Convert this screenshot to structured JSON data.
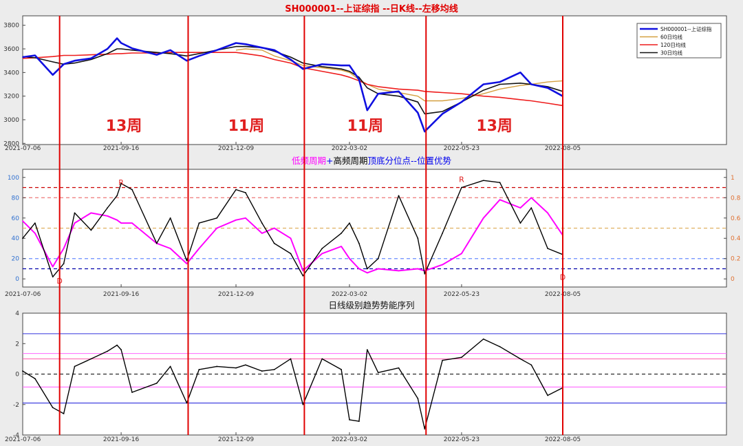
{
  "chart_data": [
    {
      "type": "line",
      "title": "SH000001--上证综指 --日K线--左移均线",
      "x_ticks": [
        "2021-07-06",
        "2021-09-16",
        "2021-12-09",
        "2022-03-02",
        "2022-05-23",
        "2022-08-05"
      ],
      "y_ticks": [
        2800,
        3000,
        3200,
        3400,
        3600,
        3800
      ],
      "ylim": [
        2790,
        3880
      ],
      "legend": {
        "position": "top-right",
        "entries": [
          "SH000001--上证综指",
          "60日均线",
          "120日均线",
          "30日均线"
        ]
      },
      "colors": {
        "price": "#1010e0",
        "ma60": "#d4a040",
        "ma120": "#ee1c1c",
        "ma30": "#111111"
      },
      "x": [
        "2021-07-06",
        "2021-07-15",
        "2021-07-28",
        "2021-08-05",
        "2021-08-13",
        "2021-08-25",
        "2021-09-06",
        "2021-09-13",
        "2021-09-16",
        "2021-09-24",
        "2021-10-12",
        "2021-10-22",
        "2021-11-03",
        "2021-11-12",
        "2021-11-25",
        "2021-12-09",
        "2021-12-16",
        "2021-12-28",
        "2022-01-06",
        "2022-01-18",
        "2022-01-27",
        "2022-02-10",
        "2022-02-24",
        "2022-03-02",
        "2022-03-09",
        "2022-03-15",
        "2022-03-23",
        "2022-04-07",
        "2022-04-21",
        "2022-04-26",
        "2022-05-09",
        "2022-05-23",
        "2022-06-08",
        "2022-06-20",
        "2022-07-05",
        "2022-07-13",
        "2022-07-25",
        "2022-08-05"
      ],
      "series": [
        {
          "name": "SH000001--上证综指",
          "key": "price",
          "width": 2.6,
          "values": [
            3530,
            3545,
            3380,
            3470,
            3500,
            3520,
            3600,
            3690,
            3650,
            3605,
            3550,
            3590,
            3500,
            3540,
            3590,
            3650,
            3640,
            3610,
            3590,
            3510,
            3430,
            3470,
            3460,
            3460,
            3340,
            3080,
            3220,
            3240,
            3060,
            2900,
            3050,
            3150,
            3300,
            3320,
            3400,
            3300,
            3270,
            3200
          ]
        },
        {
          "name": "60日均线",
          "key": "ma60",
          "width": 1.4,
          "values": [
            null,
            null,
            null,
            null,
            null,
            null,
            null,
            null,
            null,
            null,
            null,
            null,
            null,
            null,
            null,
            3590,
            3600,
            3590,
            3540,
            3500,
            3460,
            3440,
            3420,
            3400,
            3340,
            3300,
            3260,
            3230,
            3200,
            3160,
            3160,
            3180,
            3220,
            3260,
            3290,
            3300,
            3320,
            3330
          ]
        },
        {
          "name": "120日均线",
          "key": "ma120",
          "width": 1.6,
          "values": [
            3520,
            3525,
            3535,
            3545,
            3545,
            3550,
            3555,
            3560,
            3560,
            3565,
            3565,
            3570,
            3570,
            3570,
            3570,
            3570,
            3560,
            3540,
            3510,
            3480,
            3440,
            3410,
            3380,
            3360,
            3330,
            3300,
            3280,
            3260,
            3250,
            3240,
            3230,
            3220,
            3200,
            3190,
            3170,
            3160,
            3140,
            3120
          ]
        },
        {
          "name": "30日均线",
          "key": "ma30",
          "width": 1.6,
          "values": [
            3535,
            3525,
            3490,
            3470,
            3480,
            3510,
            3560,
            3600,
            3600,
            3590,
            3570,
            3560,
            3540,
            3560,
            3590,
            3620,
            3620,
            3610,
            3580,
            3530,
            3480,
            3450,
            3430,
            3410,
            3360,
            3270,
            3220,
            3200,
            3150,
            3050,
            3070,
            3150,
            3250,
            3300,
            3310,
            3300,
            3280,
            3240
          ]
        }
      ],
      "cycle_labels": [
        "13周",
        "11周",
        "11周",
        "13周"
      ],
      "cycle_markers": [
        "2021-08-02",
        "2021-11-04",
        "2022-01-28",
        "2022-04-27",
        "2022-08-05"
      ]
    },
    {
      "type": "line",
      "title_parts": [
        {
          "text": "低频周期",
          "color": "#ff00ff"
        },
        {
          "text": "+",
          "color": "#0000ee"
        },
        {
          "text": "高频周期",
          "color": "#000000"
        },
        {
          "text": "顶底分位点--位置优势",
          "color": "#0000ee"
        }
      ],
      "x_ticks": [
        "2021-07-06",
        "2021-09-16",
        "2021-12-09",
        "2022-03-02",
        "2022-05-23",
        "2022-08-05"
      ],
      "y_ticks_left": [
        0,
        20,
        40,
        60,
        80,
        100
      ],
      "y_ticks_right": [
        "0",
        "0.2",
        "0.4",
        "0.6",
        "0.8",
        "1"
      ],
      "ylim": [
        -8,
        108
      ],
      "ref_lines": [
        {
          "y": 90,
          "color": "#cc0000"
        },
        {
          "y": 80,
          "color": "#ee7777"
        },
        {
          "y": 50,
          "color": "#e0b060"
        },
        {
          "y": 20,
          "color": "#6a8cff"
        },
        {
          "y": 10,
          "color": "#0000aa"
        }
      ],
      "annotations": [
        {
          "text": "R",
          "x": "2021-09-16",
          "y": 95
        },
        {
          "text": "D",
          "x": "2021-08-02",
          "y": -2
        },
        {
          "text": "R",
          "x": "2022-05-23",
          "y": 98
        },
        {
          "text": "D",
          "x": "2022-08-05",
          "y": 2
        }
      ],
      "x": [
        "2021-07-06",
        "2021-07-15",
        "2021-07-28",
        "2021-08-05",
        "2021-08-13",
        "2021-08-25",
        "2021-09-06",
        "2021-09-13",
        "2021-09-16",
        "2021-09-24",
        "2021-10-12",
        "2021-10-22",
        "2021-11-03",
        "2021-11-12",
        "2021-11-25",
        "2021-12-09",
        "2021-12-16",
        "2021-12-28",
        "2022-01-06",
        "2022-01-18",
        "2022-01-27",
        "2022-02-10",
        "2022-02-24",
        "2022-03-02",
        "2022-03-09",
        "2022-03-15",
        "2022-03-23",
        "2022-04-07",
        "2022-04-21",
        "2022-04-26",
        "2022-05-09",
        "2022-05-23",
        "2022-06-08",
        "2022-06-20",
        "2022-07-05",
        "2022-07-13",
        "2022-07-25",
        "2022-08-05"
      ],
      "series": [
        {
          "name": "低频周期",
          "key": "low",
          "color": "#ff00ff",
          "width": 2,
          "values": [
            57,
            45,
            12,
            30,
            55,
            65,
            62,
            58,
            55,
            55,
            35,
            30,
            15,
            30,
            50,
            58,
            60,
            45,
            50,
            40,
            8,
            25,
            32,
            20,
            10,
            6,
            10,
            8,
            10,
            8,
            14,
            25,
            60,
            78,
            70,
            80,
            65,
            43
          ]
        },
        {
          "name": "高频周期",
          "key": "high",
          "color": "#000000",
          "width": 1.4,
          "values": [
            40,
            55,
            2,
            15,
            65,
            48,
            70,
            82,
            94,
            88,
            35,
            60,
            18,
            55,
            60,
            88,
            85,
            55,
            35,
            25,
            3,
            30,
            45,
            55,
            35,
            10,
            20,
            82,
            40,
            5,
            45,
            90,
            97,
            95,
            55,
            70,
            30,
            24
          ]
        }
      ]
    },
    {
      "type": "line",
      "title": "日线级别趋势势能序列",
      "x_ticks": [
        "2021-07-06",
        "2021-09-16",
        "2021-12-09",
        "2022-03-02",
        "2022-05-23",
        "2022-08-05"
      ],
      "y_ticks": [
        -4,
        -2,
        0,
        2,
        4
      ],
      "ylim": [
        -4,
        4
      ],
      "ref_lines": [
        {
          "y": 2.65,
          "color": "#3030dd"
        },
        {
          "y": 1.35,
          "color": "#ff66ff"
        },
        {
          "y": 1.0,
          "color": "#ff55aa"
        },
        {
          "y": 0,
          "color": "#000000",
          "dashed": true
        },
        {
          "y": -0.85,
          "color": "#ff66ff"
        },
        {
          "y": -1.9,
          "color": "#3030dd"
        }
      ],
      "x": [
        "2021-07-06",
        "2021-07-15",
        "2021-07-28",
        "2021-08-05",
        "2021-08-13",
        "2021-08-25",
        "2021-09-06",
        "2021-09-13",
        "2021-09-16",
        "2021-09-24",
        "2021-10-12",
        "2021-10-22",
        "2021-11-03",
        "2021-11-12",
        "2021-11-25",
        "2021-12-09",
        "2021-12-16",
        "2021-12-28",
        "2022-01-06",
        "2022-01-18",
        "2022-01-27",
        "2022-02-10",
        "2022-02-24",
        "2022-03-02",
        "2022-03-09",
        "2022-03-15",
        "2022-03-23",
        "2022-04-07",
        "2022-04-21",
        "2022-04-26",
        "2022-05-09",
        "2022-05-23",
        "2022-06-08",
        "2022-06-20",
        "2022-07-05",
        "2022-07-13",
        "2022-07-25",
        "2022-08-05"
      ],
      "series": [
        {
          "name": "trend",
          "key": "trend",
          "color": "#000000",
          "width": 1.4,
          "values": [
            0.2,
            -0.3,
            -2.2,
            -2.6,
            0.5,
            1.0,
            1.5,
            1.9,
            1.6,
            -1.2,
            -0.6,
            0.5,
            -1.9,
            0.3,
            0.5,
            0.4,
            0.6,
            0.2,
            0.3,
            1.0,
            -2.0,
            1.0,
            0.3,
            -3.0,
            -3.1,
            1.6,
            0.1,
            0.4,
            -1.6,
            -3.6,
            0.9,
            1.1,
            2.3,
            1.8,
            1.0,
            0.6,
            -1.4,
            -0.9
          ]
        }
      ]
    }
  ]
}
